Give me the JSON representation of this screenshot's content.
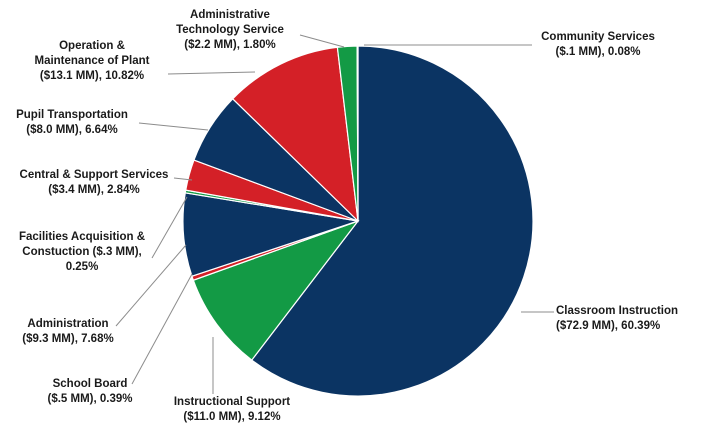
{
  "colors": {
    "navy": "#0b3463",
    "red": "#d42027",
    "green": "#139a45"
  },
  "chart_data": {
    "type": "pie",
    "title": "",
    "legend": "none",
    "start": "top",
    "direction": "clockwise",
    "slices": [
      {
        "name": "Classroom Instruction",
        "value_mm": 72.9,
        "percent": 60.39,
        "color": "navy",
        "label": [
          "Classroom Instruction",
          "($72.9 MM), 60.39%"
        ]
      },
      {
        "name": "Instructional Support",
        "value_mm": 11.0,
        "percent": 9.12,
        "color": "green",
        "label": [
          "Instructional Support",
          "($11.0 MM), 9.12%"
        ]
      },
      {
        "name": "School Board",
        "value_mm": 0.5,
        "percent": 0.39,
        "color": "red",
        "label": [
          "School Board",
          "($.5 MM), 0.39%"
        ]
      },
      {
        "name": "Administration",
        "value_mm": 9.3,
        "percent": 7.68,
        "color": "navy",
        "label": [
          "Administration",
          "($9.3 MM), 7.68%"
        ]
      },
      {
        "name": "Facilities Acquisition & Constuction",
        "value_mm": 0.3,
        "percent": 0.25,
        "color": "green",
        "label": [
          "Facilities Acquisition &",
          "Constuction ($.3 MM),",
          "0.25%"
        ]
      },
      {
        "name": "Central & Support Services",
        "value_mm": 3.4,
        "percent": 2.84,
        "color": "red",
        "label": [
          "Central & Support Services",
          "($3.4 MM), 2.84%"
        ]
      },
      {
        "name": "Pupil Transportation",
        "value_mm": 8.0,
        "percent": 6.64,
        "color": "navy",
        "label": [
          "Pupil Transportation",
          "($8.0 MM), 6.64%"
        ]
      },
      {
        "name": "Operation & Maintenance of Plant",
        "value_mm": 13.1,
        "percent": 10.82,
        "color": "red",
        "label": [
          "Operation &",
          "Maintenance of Plant",
          "($13.1 MM), 10.82%"
        ]
      },
      {
        "name": "Administrative Technology Service",
        "value_mm": 2.2,
        "percent": 1.8,
        "color": "green",
        "label": [
          "Administrative",
          "Technology Service",
          "($2.2 MM), 1.80%"
        ]
      },
      {
        "name": "Community Services",
        "value_mm": 0.1,
        "percent": 0.08,
        "color": "navy",
        "label": [
          "Community Services",
          "($.1 MM), 0.08%"
        ]
      }
    ]
  }
}
